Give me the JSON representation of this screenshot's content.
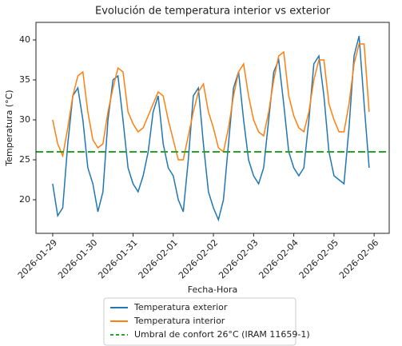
{
  "chart_data": {
    "type": "line",
    "title": "Evolución de temperatura interior vs exterior",
    "xlabel": "Fecha-Hora",
    "ylabel": "Temperatura (°C)",
    "x": [
      "2026-01-29 00:00",
      "2026-01-29 03:00",
      "2026-01-29 06:00",
      "2026-01-29 09:00",
      "2026-01-29 12:00",
      "2026-01-29 15:00",
      "2026-01-29 18:00",
      "2026-01-29 21:00",
      "2026-01-30 00:00",
      "2026-01-30 03:00",
      "2026-01-30 06:00",
      "2026-01-30 09:00",
      "2026-01-30 12:00",
      "2026-01-30 15:00",
      "2026-01-30 18:00",
      "2026-01-30 21:00",
      "2026-01-31 00:00",
      "2026-01-31 03:00",
      "2026-01-31 06:00",
      "2026-01-31 09:00",
      "2026-01-31 12:00",
      "2026-01-31 15:00",
      "2026-01-31 18:00",
      "2026-01-31 21:00",
      "2026-02-01 00:00",
      "2026-02-01 03:00",
      "2026-02-01 06:00",
      "2026-02-01 09:00",
      "2026-02-01 12:00",
      "2026-02-01 15:00",
      "2026-02-01 18:00",
      "2026-02-01 21:00",
      "2026-02-02 00:00",
      "2026-02-02 03:00",
      "2026-02-02 06:00",
      "2026-02-02 09:00",
      "2026-02-02 12:00",
      "2026-02-02 15:00",
      "2026-02-02 18:00",
      "2026-02-02 21:00",
      "2026-02-03 00:00",
      "2026-02-03 03:00",
      "2026-02-03 06:00",
      "2026-02-03 09:00",
      "2026-02-03 12:00",
      "2026-02-03 15:00",
      "2026-02-03 18:00",
      "2026-02-03 21:00",
      "2026-02-04 00:00",
      "2026-02-04 03:00",
      "2026-02-04 06:00",
      "2026-02-04 09:00",
      "2026-02-04 12:00",
      "2026-02-04 15:00",
      "2026-02-04 18:00",
      "2026-02-04 21:00",
      "2026-02-05 00:00",
      "2026-02-05 03:00",
      "2026-02-05 06:00",
      "2026-02-05 09:00",
      "2026-02-05 12:00",
      "2026-02-05 15:00",
      "2026-02-05 18:00",
      "2026-02-05 21:00"
    ],
    "series": [
      {
        "name": "Temperatura exterior",
        "color": "#1f77b4",
        "values": [
          22,
          18,
          19,
          27,
          33,
          34,
          30,
          24,
          22,
          18.5,
          21,
          30,
          35,
          35.5,
          30,
          24,
          22,
          21,
          23,
          26,
          31,
          33,
          27,
          24,
          23,
          20,
          18.5,
          25,
          33,
          34,
          27,
          21,
          19,
          17.5,
          20,
          27,
          34,
          36,
          30,
          25,
          23,
          22,
          24,
          30,
          36,
          37.5,
          32,
          26,
          24,
          23,
          24,
          30,
          37,
          38,
          33,
          26,
          23,
          22.5,
          22,
          29,
          38,
          40.5,
          32,
          24
        ]
      },
      {
        "name": "Temperatura interior",
        "color": "#ff7f0e",
        "values": [
          30,
          27,
          25.5,
          29,
          33,
          35.5,
          36,
          31,
          27.5,
          26.5,
          27,
          31,
          34,
          36.5,
          36,
          31,
          29.5,
          28.5,
          29,
          30.5,
          32,
          33.5,
          33,
          30,
          27.5,
          25,
          25,
          28,
          31,
          33.5,
          34.5,
          31,
          29,
          26.5,
          26,
          29,
          33,
          36,
          37,
          33,
          30,
          28.5,
          28,
          31,
          35,
          38,
          38.5,
          33,
          30.5,
          29,
          28.5,
          31,
          35,
          37.5,
          37.5,
          32,
          30,
          28.5,
          28.5,
          32,
          37,
          39.5,
          39.5,
          31
        ]
      }
    ],
    "hlines": [
      {
        "name": "Umbral de confort 26°C (IRAM 11659-1)",
        "value": 26,
        "color": "#2ca02c",
        "style": "dashed"
      }
    ],
    "xlim": [
      "2026-01-28 14:00",
      "2026-02-06 09:00"
    ],
    "xticks": [
      "2026-01-29",
      "2026-01-30",
      "2026-01-31",
      "2026-02-01",
      "2026-02-02",
      "2026-02-03",
      "2026-02-04",
      "2026-02-05",
      "2026-02-06"
    ],
    "ylim": [
      15.8,
      42.2
    ],
    "yticks": [
      20,
      25,
      30,
      35,
      40
    ],
    "grid": false,
    "legend": "lower center outside"
  }
}
